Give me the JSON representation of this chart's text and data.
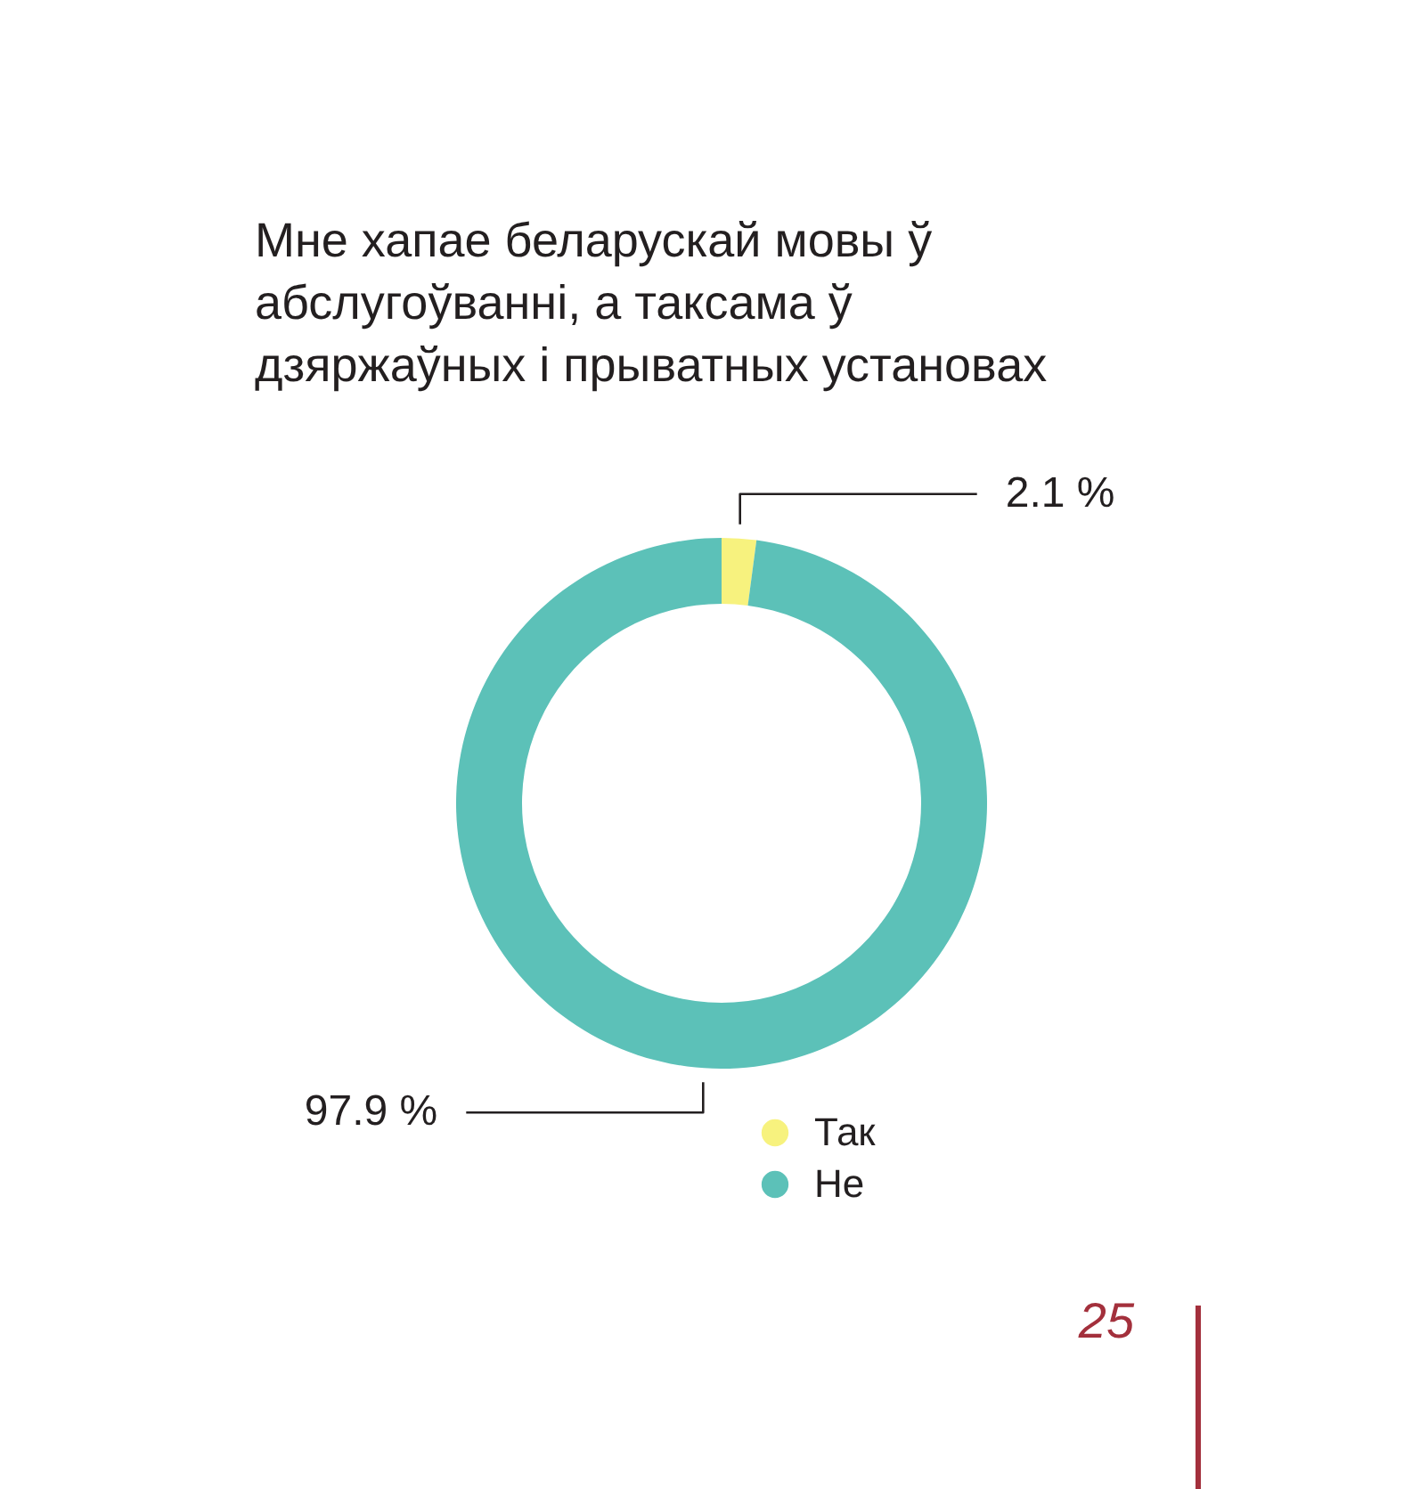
{
  "chart_data": {
    "type": "donut",
    "title": "Мне хапае беларускай мовы ў абслугоўванні, а таксама ў дзяржаўных і прыватных установах",
    "categories": [
      "Так",
      "Не"
    ],
    "values": [
      2.1,
      97.9
    ],
    "colors": [
      "#f7f27e",
      "#5cc1b8"
    ],
    "value_labels": [
      "2.1 %",
      "97.9 %"
    ],
    "legend": "bottom",
    "annotations": [
      "25"
    ]
  }
}
